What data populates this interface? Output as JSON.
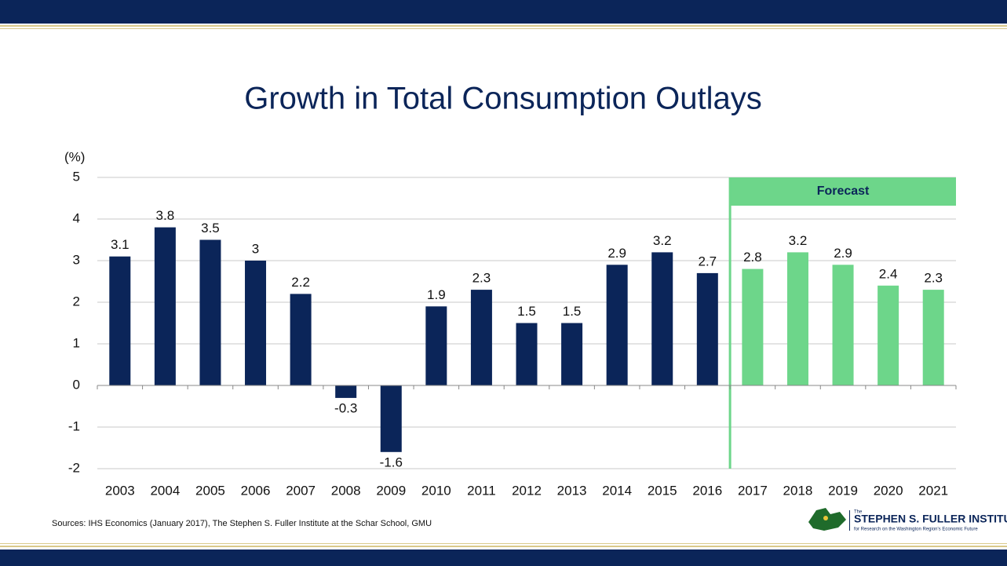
{
  "chart_data": {
    "type": "bar",
    "title": "Growth in Total Consumption Outlays",
    "y_label": "(%)",
    "categories": [
      "2003",
      "2004",
      "2005",
      "2006",
      "2007",
      "2008",
      "2009",
      "2010",
      "2011",
      "2012",
      "2013",
      "2014",
      "2015",
      "2016",
      "2017",
      "2018",
      "2019",
      "2020",
      "2021"
    ],
    "values": [
      3.1,
      3.8,
      3.5,
      3,
      2.2,
      -0.3,
      -1.6,
      1.9,
      2.3,
      1.5,
      1.5,
      2.9,
      3.2,
      2.7,
      2.8,
      3.2,
      2.9,
      2.4,
      2.3
    ],
    "colors": [
      "#0b2559",
      "#0b2559",
      "#0b2559",
      "#0b2559",
      "#0b2559",
      "#0b2559",
      "#0b2559",
      "#0b2559",
      "#0b2559",
      "#0b2559",
      "#0b2559",
      "#0b2559",
      "#0b2559",
      "#0b2559",
      "#6dd68a",
      "#6dd68a",
      "#6dd68a",
      "#6dd68a",
      "#6dd68a"
    ],
    "annotation": "Forecast",
    "annotation_color": "#6dd68a",
    "ylim": [
      -2,
      5
    ],
    "yticks": [
      -2,
      -1,
      0,
      1,
      2,
      3,
      4,
      5
    ],
    "grid": true,
    "source": "Sources: IHS Economics (January 2017), The Stephen S. Fuller Institute at the Schar School, GMU"
  },
  "logo": {
    "small": "The",
    "name": "STEPHEN S. FULLER INSTITUTE",
    "tagline": "for Research on the Washington Region's Economic Future"
  }
}
